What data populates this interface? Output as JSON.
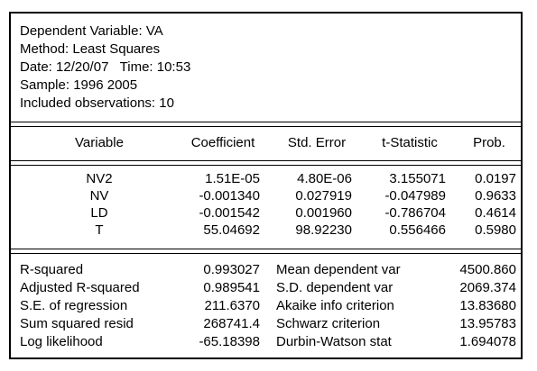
{
  "header": {
    "dependent_variable": "Dependent Variable: VA",
    "method": "Method: Least Squares",
    "date_time": "Date: 12/20/07   Time: 10:53",
    "sample": "Sample: 1996 2005",
    "observations": "Included observations: 10"
  },
  "coef_table": {
    "columns": [
      "Variable",
      "Coefficient",
      "Std. Error",
      "t-Statistic",
      "Prob."
    ],
    "rows": [
      {
        "variable": "NV2",
        "coefficient": "1.51E-05",
        "std_error": "4.80E-06",
        "t_stat": "3.155071",
        "prob": "0.0197"
      },
      {
        "variable": "NV",
        "coefficient": "-0.001340",
        "std_error": "0.027919",
        "t_stat": "-0.047989",
        "prob": "0.9633"
      },
      {
        "variable": "LD",
        "coefficient": "-0.001542",
        "std_error": "0.001960",
        "t_stat": "-0.786704",
        "prob": "0.4614"
      },
      {
        "variable": "T",
        "coefficient": "55.04692",
        "std_error": "98.92230",
        "t_stat": "0.556466",
        "prob": "0.5980"
      }
    ]
  },
  "stats": {
    "left": [
      {
        "label": "R-squared",
        "value": "0.993027"
      },
      {
        "label": "Adjusted R-squared",
        "value": "0.989541"
      },
      {
        "label": "S.E. of regression",
        "value": "211.6370"
      },
      {
        "label": "Sum squared resid",
        "value": "268741.4"
      },
      {
        "label": "Log likelihood",
        "value": "-65.18398"
      }
    ],
    "right": [
      {
        "label": "Mean dependent var",
        "value": "4500.860"
      },
      {
        "label": "S.D. dependent var",
        "value": "2069.374"
      },
      {
        "label": "Akaike info criterion",
        "value": "13.83680"
      },
      {
        "label": "Schwarz criterion",
        "value": "13.95783"
      },
      {
        "label": "Durbin-Watson stat",
        "value": "1.694078"
      }
    ]
  }
}
